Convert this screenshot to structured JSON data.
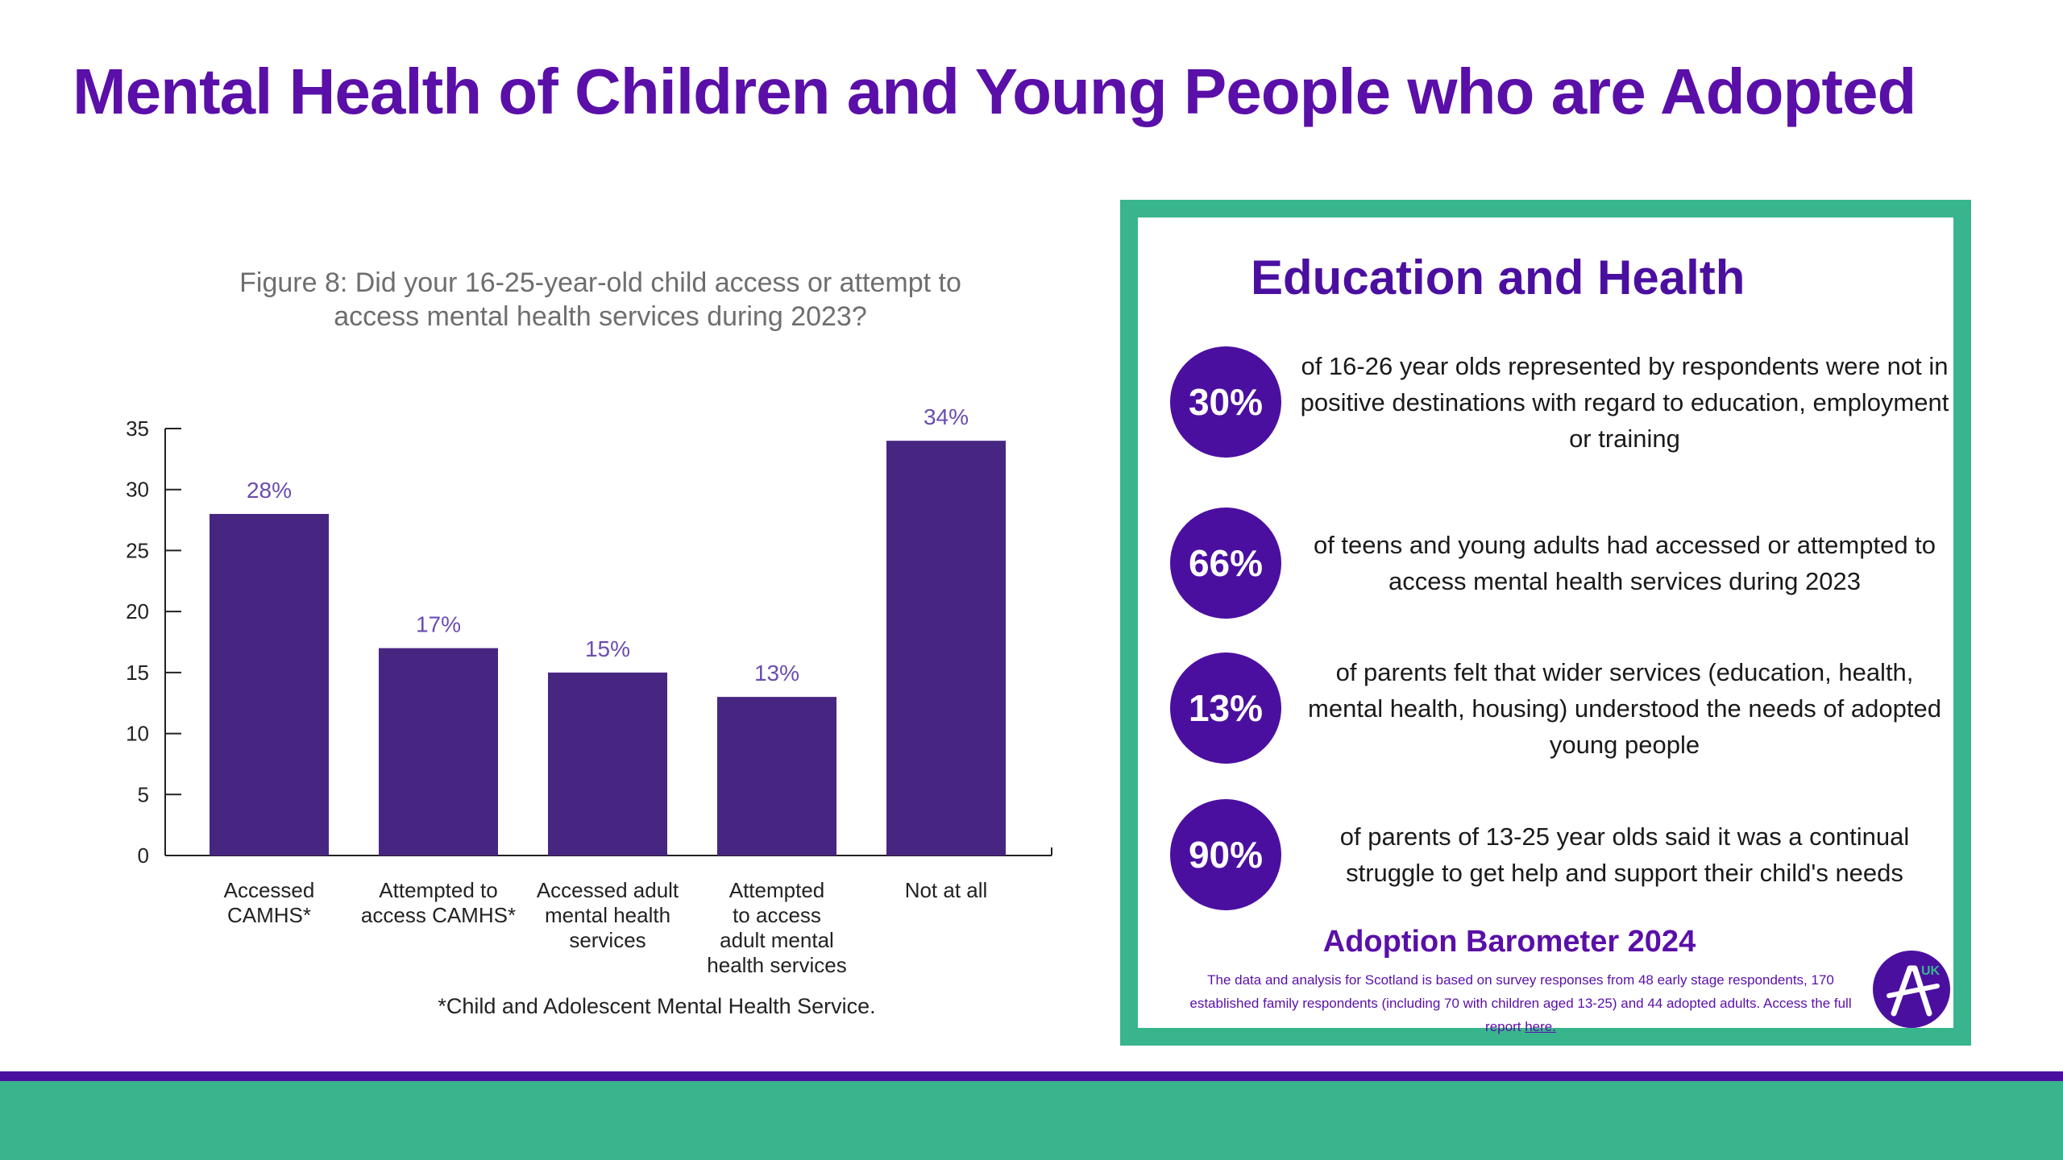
{
  "page": {
    "title": "Mental Health of Children and Young People who are Adopted"
  },
  "colors": {
    "title": "#5a0fa8",
    "bar": "#472682",
    "panel_border": "#39b58e",
    "circle": "#4b0fa0",
    "band_line": "#4b0fa0",
    "band": "#39b58e"
  },
  "chart_data": {
    "type": "bar",
    "title_lines": [
      "Figure 8: Did your 16-25-year-old child access or attempt to",
      "access mental health services during 2023?"
    ],
    "categories": [
      [
        "Accessed",
        "CAMHS*"
      ],
      [
        "Attempted to",
        "access CAMHS*"
      ],
      [
        "Accessed adult",
        "mental health",
        "services"
      ],
      [
        "Attempted",
        "to access",
        "adult mental",
        "health services"
      ],
      [
        "Not at all"
      ]
    ],
    "values": [
      28,
      17,
      15,
      13,
      34
    ],
    "data_labels": [
      "28%",
      "17%",
      "15%",
      "13%",
      "34%"
    ],
    "yticks": [
      "0",
      "5",
      "10",
      "15",
      "20",
      "25",
      "30",
      "35"
    ],
    "ylim": [
      0,
      35
    ],
    "xlabel": "",
    "ylabel": "",
    "grid": false,
    "footnote": "*Child and Adolescent Mental Health Service."
  },
  "panel": {
    "title": "Education and Health",
    "stats": [
      {
        "value": "30%",
        "text": "of 16-26 year olds represented by respondents were not in positive destinations with regard to education, employment or training"
      },
      {
        "value": "66%",
        "text": "of teens and young adults had accessed or attempted to access mental health services during 2023"
      },
      {
        "value": "13%",
        "text": "of parents felt that wider services (education, health, mental health, housing) understood the needs of adopted young people"
      },
      {
        "value": "90%",
        "text": "of parents of 13-25 year olds said it was a continual struggle to get help and support their child's needs"
      }
    ],
    "barometer_title": "Adoption Barometer 2024",
    "barometer_note": "The data and analysis for Scotland is based on survey responses from 48 early stage respondents, 170 established family respondents (including 70 with children aged 13-25) and 44 adopted adults. Access the full report",
    "report_link": "here.",
    "logo_letter": "A",
    "logo_text": "UK"
  }
}
